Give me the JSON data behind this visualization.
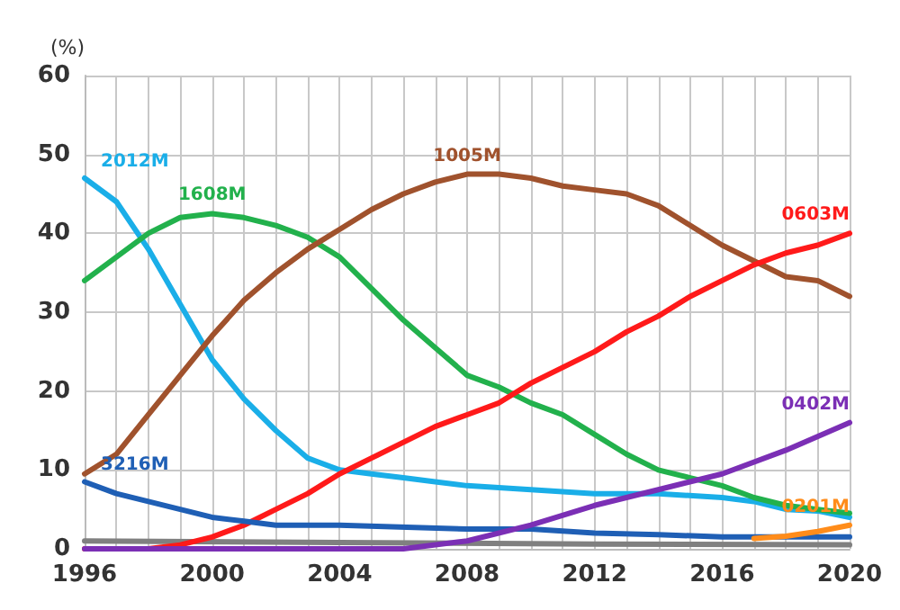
{
  "chart_data": {
    "type": "line",
    "ylabel": "(%)",
    "xlim": [
      1996,
      2020
    ],
    "xticks": [
      1996,
      {
        "value": 1997,
        "label": null
      },
      {
        "value": 1998,
        "label": null
      },
      {
        "value": 1999,
        "label": null
      },
      2000,
      {
        "value": 2001,
        "label": null
      },
      {
        "value": 2002,
        "label": null
      },
      {
        "value": 2003,
        "label": null
      },
      2004,
      {
        "value": 2005,
        "label": null
      },
      {
        "value": 2006,
        "label": null
      },
      {
        "value": 2007,
        "label": null
      },
      2008,
      {
        "value": 2009,
        "label": null
      },
      {
        "value": 2010,
        "label": null
      },
      {
        "value": 2011,
        "label": null
      },
      2012,
      {
        "value": 2013,
        "label": null
      },
      {
        "value": 2014,
        "label": null
      },
      {
        "value": 2015,
        "label": null
      },
      2016,
      {
        "value": 2017,
        "label": null
      },
      {
        "value": 2018,
        "label": null
      },
      {
        "value": 2019,
        "label": null
      },
      2020
    ],
    "ylim": [
      0,
      60
    ],
    "yticks": [
      0,
      10,
      20,
      30,
      40,
      50,
      60
    ],
    "grid": true,
    "legend": false,
    "marker": "none",
    "line_style": "solid",
    "series": [
      {
        "name": "2012M",
        "color": "#1aaee8",
        "x": [
          1996,
          1997,
          1998,
          1999,
          2000,
          2001,
          2002,
          2003,
          2004,
          2005,
          2006,
          2007,
          2008,
          2010,
          2012,
          2014,
          2016,
          2017,
          2018,
          2019,
          2020
        ],
        "values": [
          47,
          44,
          38,
          31,
          24,
          19,
          15,
          11.5,
          10,
          9.5,
          9,
          8.5,
          8,
          7.5,
          7,
          7,
          6.5,
          6,
          5,
          4.8,
          4
        ]
      },
      {
        "name": "1608M",
        "color": "#22b14c",
        "x": [
          1996,
          1997,
          1998,
          1999,
          2000,
          2001,
          2002,
          2003,
          2004,
          2005,
          2006,
          2007,
          2008,
          2009,
          2010,
          2011,
          2012,
          2013,
          2014,
          2015,
          2016,
          2017,
          2018,
          2019,
          2020
        ],
        "values": [
          34,
          37,
          40,
          42,
          42.5,
          42,
          41,
          39.5,
          37,
          33,
          29,
          25.5,
          22,
          20.5,
          18.5,
          17,
          14.5,
          12,
          10,
          9,
          8,
          6.5,
          5.5,
          5,
          4.5
        ]
      },
      {
        "name": "1005M",
        "color": "#a0522d",
        "x": [
          1996,
          1997,
          1998,
          1999,
          2000,
          2001,
          2002,
          2003,
          2004,
          2005,
          2006,
          2007,
          2008,
          2009,
          2010,
          2011,
          2012,
          2013,
          2014,
          2015,
          2016,
          2017,
          2018,
          2019,
          2020
        ],
        "values": [
          9.5,
          12,
          17,
          22,
          27,
          31.5,
          35,
          38,
          40.5,
          43,
          45,
          46.5,
          47.5,
          47.5,
          47,
          46,
          45.5,
          45,
          43.5,
          41,
          38.5,
          36.5,
          34.5,
          34,
          32
        ]
      },
      {
        "name": "0603M",
        "color": "#ff1a1a",
        "x": [
          1996,
          1997,
          1998,
          1999,
          2000,
          2001,
          2002,
          2003,
          2004,
          2005,
          2006,
          2007,
          2008,
          2009,
          2010,
          2011,
          2012,
          2013,
          2014,
          2015,
          2016,
          2017,
          2018,
          2019,
          2020
        ],
        "values": [
          0,
          0,
          0,
          0.5,
          1.5,
          3,
          5,
          7,
          9.5,
          11.5,
          13.5,
          15.5,
          17,
          18.5,
          21,
          23,
          25,
          27.5,
          29.5,
          32,
          34,
          36,
          37.5,
          38.5,
          40
        ]
      },
      {
        "name": "3216M",
        "color": "#1f5fb5",
        "x": [
          1996,
          1997,
          1998,
          1999,
          2000,
          2001,
          2002,
          2004,
          2008,
          2010,
          2012,
          2014,
          2016,
          2018,
          2020
        ],
        "values": [
          8.5,
          7,
          6,
          5,
          4,
          3.5,
          3,
          3,
          2.5,
          2.5,
          2,
          1.8,
          1.5,
          1.5,
          1.5
        ]
      },
      {
        "name": "0402M",
        "color": "#7b2fb5",
        "x": [
          1996,
          2006,
          2008,
          2010,
          2012,
          2014,
          2016,
          2018,
          2020
        ],
        "values": [
          0,
          0,
          1,
          3,
          5.5,
          7.5,
          9.5,
          12.5,
          16
        ]
      },
      {
        "name": "0201M",
        "color": "#ff8c1a",
        "x": [
          2017,
          2018,
          2019,
          2020
        ],
        "values": [
          1.3,
          1.6,
          2.2,
          3
        ]
      },
      {
        "color": "#808080",
        "x": [
          1996,
          2004,
          2012,
          2020
        ],
        "values": [
          1,
          0.8,
          0.6,
          0.5
        ]
      }
    ]
  }
}
